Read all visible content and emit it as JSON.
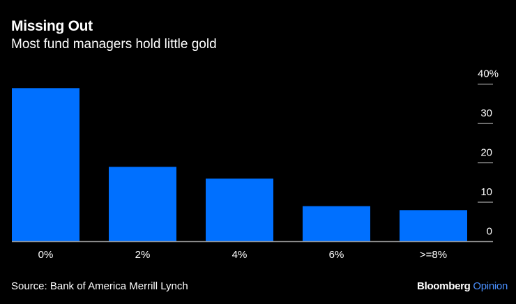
{
  "chart_data": {
    "type": "bar",
    "title": "Missing Out",
    "subtitle": "Most fund managers hold little gold",
    "categories": [
      "0%",
      "2%",
      "4%",
      "6%",
      ">=8%"
    ],
    "values": [
      39,
      19,
      16,
      9,
      8
    ],
    "ylim": [
      0,
      40
    ],
    "yticks": [
      0,
      10,
      20,
      30,
      40
    ],
    "ytick_labels": [
      "0",
      "10",
      "20",
      "30",
      "40%"
    ],
    "xlabel": "",
    "ylabel": "",
    "grid": false,
    "y_axis_side": "right",
    "bar_color": "#0070ff",
    "background": "#000000"
  },
  "source": "Source: Bank of America Merrill Lynch",
  "logo": {
    "brand": "Bloomberg",
    "section": "Opinion"
  }
}
